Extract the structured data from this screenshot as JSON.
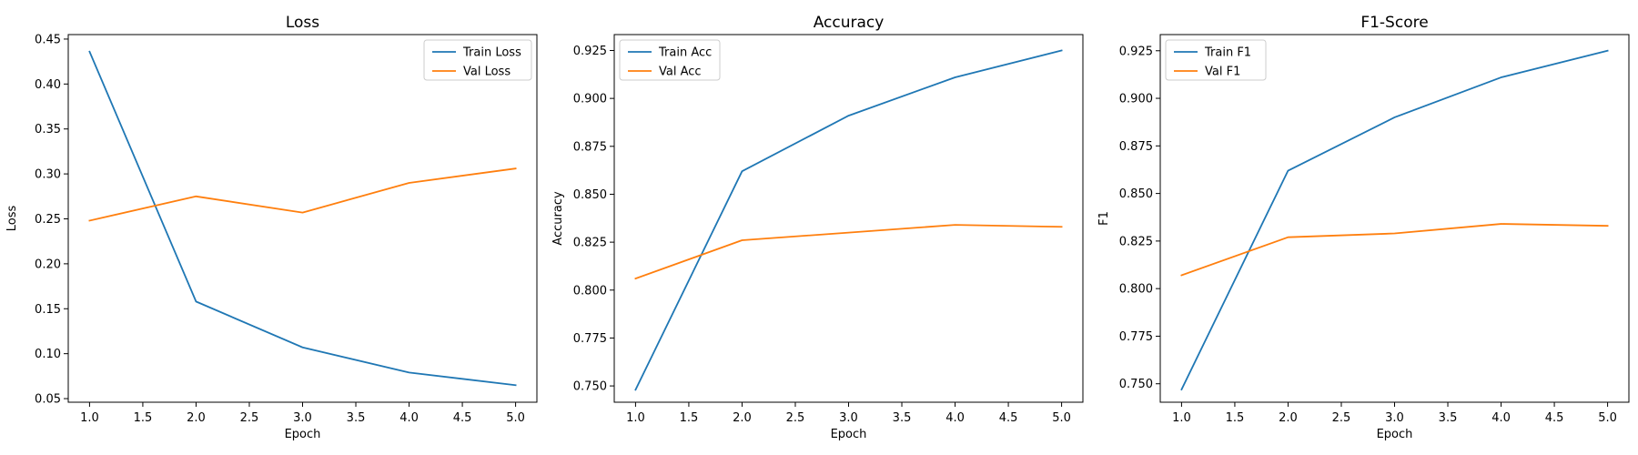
{
  "chart_data": [
    {
      "type": "line",
      "title": "Loss",
      "xlabel": "Epoch",
      "ylabel": "Loss",
      "x": [
        1,
        2,
        3,
        4,
        5
      ],
      "xlim": [
        0.8,
        5.2
      ],
      "ylim": [
        0.046,
        0.455
      ],
      "xticks": [
        1.0,
        1.5,
        2.0,
        2.5,
        3.0,
        3.5,
        4.0,
        4.5,
        5.0
      ],
      "yticks": [
        0.05,
        0.1,
        0.15,
        0.2,
        0.25,
        0.3,
        0.35,
        0.4,
        0.45
      ],
      "ytick_decimals": 2,
      "grid": false,
      "legend_position": "upper right",
      "series": [
        {
          "name": "Train Loss",
          "color": "#1f77b4",
          "values": [
            0.436,
            0.158,
            0.107,
            0.079,
            0.065
          ]
        },
        {
          "name": "Val Loss",
          "color": "#ff7f0e",
          "values": [
            0.248,
            0.275,
            0.257,
            0.29,
            0.306
          ]
        }
      ]
    },
    {
      "type": "line",
      "title": "Accuracy",
      "xlabel": "Epoch",
      "ylabel": "Accuracy",
      "x": [
        1,
        2,
        3,
        4,
        5
      ],
      "xlim": [
        0.8,
        5.2
      ],
      "ylim": [
        0.7415,
        0.9333
      ],
      "xticks": [
        1.0,
        1.5,
        2.0,
        2.5,
        3.0,
        3.5,
        4.0,
        4.5,
        5.0
      ],
      "yticks": [
        0.75,
        0.775,
        0.8,
        0.825,
        0.85,
        0.875,
        0.9,
        0.925
      ],
      "ytick_decimals": 3,
      "grid": false,
      "legend_position": "upper left",
      "series": [
        {
          "name": "Train Acc",
          "color": "#1f77b4",
          "values": [
            0.748,
            0.862,
            0.891,
            0.911,
            0.925
          ]
        },
        {
          "name": "Val Acc",
          "color": "#ff7f0e",
          "values": [
            0.806,
            0.826,
            0.83,
            0.834,
            0.833
          ]
        }
      ]
    },
    {
      "type": "line",
      "title": "F1-Score",
      "xlabel": "Epoch",
      "ylabel": "F1",
      "x": [
        1,
        2,
        3,
        4,
        5
      ],
      "xlim": [
        0.8,
        5.2
      ],
      "ylim": [
        0.7403,
        0.9335
      ],
      "xticks": [
        1.0,
        1.5,
        2.0,
        2.5,
        3.0,
        3.5,
        4.0,
        4.5,
        5.0
      ],
      "yticks": [
        0.75,
        0.775,
        0.8,
        0.825,
        0.85,
        0.875,
        0.9,
        0.925
      ],
      "ytick_decimals": 3,
      "grid": false,
      "legend_position": "upper left",
      "series": [
        {
          "name": "Train F1",
          "color": "#1f77b4",
          "values": [
            0.747,
            0.862,
            0.89,
            0.911,
            0.925
          ]
        },
        {
          "name": "Val F1",
          "color": "#ff7f0e",
          "values": [
            0.807,
            0.827,
            0.829,
            0.834,
            0.833
          ]
        }
      ]
    }
  ]
}
